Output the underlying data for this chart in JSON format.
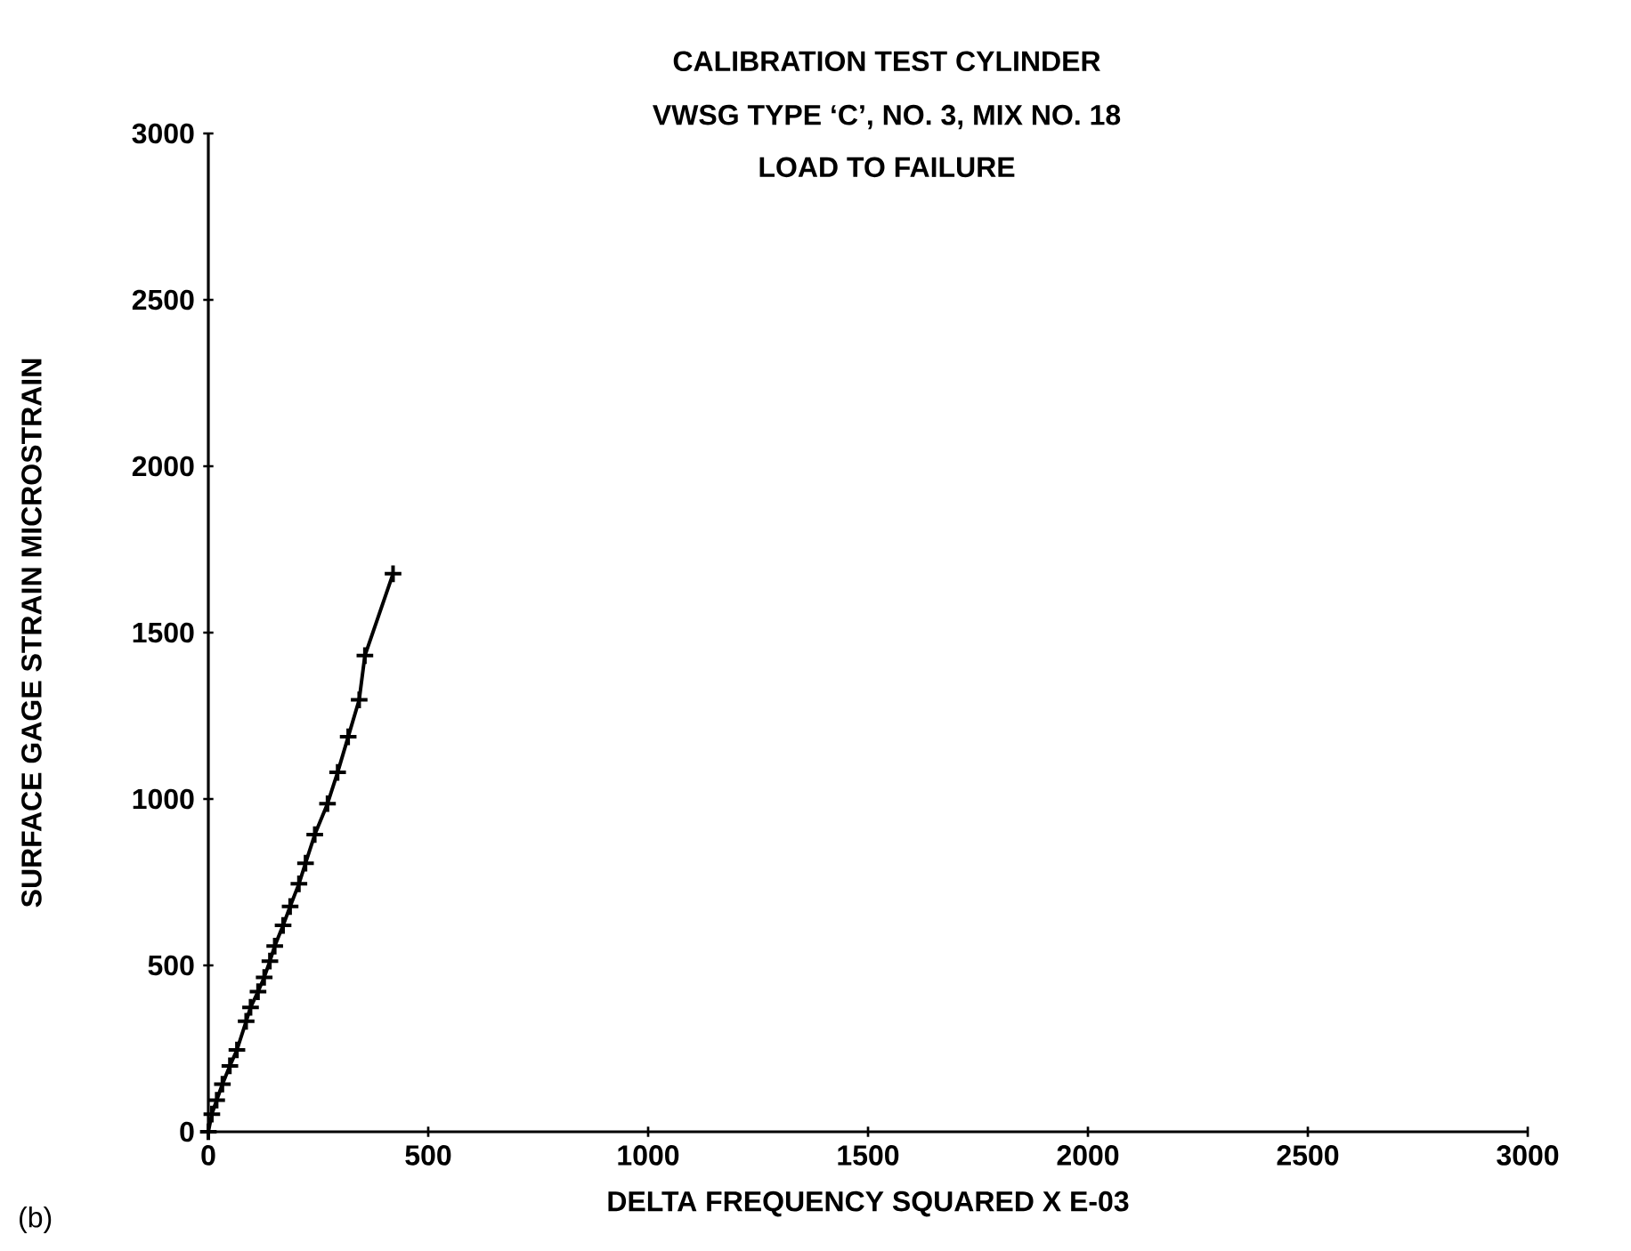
{
  "chart_data": {
    "type": "line",
    "title": "CALIBRATION TEST CYLINDER",
    "subtitle": "VWSG TYPE ‘C’, NO. 3, MIX NO. 18\nLOAD TO FAILURE",
    "xlabel": "DELTA FREQUENCY SQUARED  X  E-03",
    "ylabel": "SURFACE  GAGE  STRAIN    MICROSTRAIN",
    "annotations": [
      "(b)"
    ],
    "series": [
      {
        "color": "#000000",
        "x": [
          0,
          8,
          19,
          32,
          49,
          65,
          86,
          96,
          113,
          127,
          140,
          151,
          170,
          186,
          206,
          221,
          242,
          271,
          294,
          318,
          343,
          356,
          420
        ],
        "values": [
          0,
          53,
          95,
          143,
          198,
          246,
          332,
          374,
          421,
          464,
          513,
          558,
          620,
          677,
          745,
          807,
          893,
          986,
          1080,
          1187,
          1298,
          1431,
          1677
        ]
      }
    ],
    "xlim": [
      0,
      3000
    ],
    "ylim": [
      0,
      3000
    ],
    "xticks": [
      0,
      500,
      1000,
      1500,
      2000,
      2500,
      3000
    ],
    "yticks": [
      0,
      500,
      1000,
      1500,
      2000,
      2500,
      3000
    ],
    "grid": false,
    "legend": false,
    "marker": "cross",
    "line_style": "solid"
  }
}
